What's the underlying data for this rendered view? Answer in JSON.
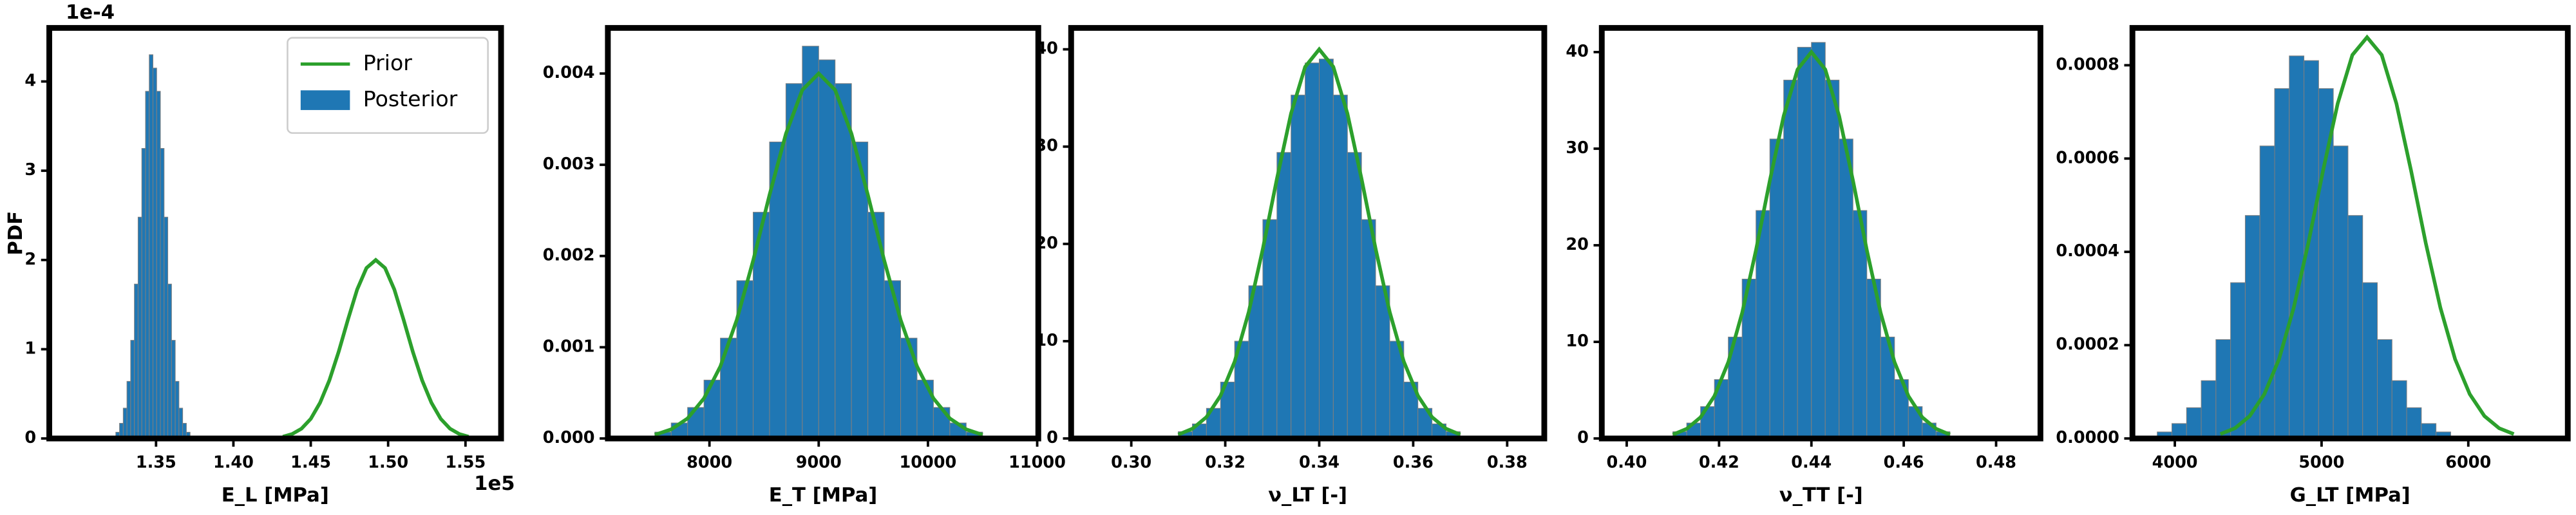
{
  "chart_data": [
    {
      "type": "histogram",
      "xlabel": "E_L [MPa]",
      "ylabel": "PDF",
      "x_offset": "1e5",
      "y_offset": "1e-4",
      "legend": "upper right",
      "xlim": [
        1.281,
        1.573
      ],
      "ylim": [
        0,
        4.6
      ],
      "xticks": [
        1.35,
        {
          "value": 1.4,
          "label": "1.40"
        },
        1.45,
        {
          "value": 1.5,
          "label": "1.50"
        },
        1.55
      ],
      "yticks": [
        0,
        1,
        2,
        3,
        4
      ],
      "series": [
        {
          "name": "Prior",
          "color": "#2ca02c",
          "x": [
            1.432,
            1.438,
            1.444,
            1.45,
            1.456,
            1.462,
            1.468,
            1.474,
            1.48,
            1.486,
            1.492,
            1.498,
            1.504,
            1.51,
            1.516,
            1.522,
            1.528,
            1.534,
            1.54,
            1.546,
            1.552
          ],
          "values": [
            0.02,
            0.05,
            0.11,
            0.22,
            0.4,
            0.65,
            0.97,
            1.33,
            1.67,
            1.91,
            2.0,
            1.91,
            1.67,
            1.33,
            0.97,
            0.65,
            0.4,
            0.22,
            0.11,
            0.05,
            0.02
          ]
        },
        {
          "name": "Posterior",
          "color": "#1f77b4",
          "bins": [
            1.324,
            1.3264,
            1.3288,
            1.3312,
            1.3336,
            1.336,
            1.3384,
            1.3408,
            1.3432,
            1.3456,
            1.348,
            1.3504,
            1.3528,
            1.3552,
            1.3576,
            1.36,
            1.3624,
            1.3648,
            1.3672,
            1.3696,
            1.372
          ],
          "values": [
            0.07,
            0.17,
            0.34,
            0.64,
            1.1,
            1.73,
            2.48,
            3.25,
            3.89,
            4.3,
            4.15,
            3.89,
            3.25,
            2.48,
            1.73,
            1.1,
            0.64,
            0.34,
            0.17,
            0.07
          ]
        }
      ]
    },
    {
      "type": "histogram",
      "xlabel": "E_T [MPa]",
      "xlim": [
        7070,
        11010
      ],
      "ylim": [
        0,
        0.0045
      ],
      "xticks": [
        8000,
        9000,
        10000,
        11000
      ],
      "yticks": [
        {
          "value": 0,
          "label": "0.000"
        },
        0.001,
        0.002,
        0.003,
        0.004
      ],
      "series": [
        {
          "color": "#2ca02c",
          "x": [
            7500,
            7650,
            7800,
            7950,
            8100,
            8250,
            8400,
            8550,
            8700,
            8850,
            9000,
            9150,
            9300,
            9450,
            9600,
            9750,
            9900,
            10050,
            10200,
            10350,
            10500
          ],
          "values": [
            4e-05,
            0.0001,
            0.00022,
            0.00044,
            0.00079,
            0.0013,
            0.00195,
            0.00267,
            0.00334,
            0.00382,
            0.004,
            0.00382,
            0.00334,
            0.00267,
            0.00195,
            0.0013,
            0.00079,
            0.00044,
            0.00022,
            0.0001,
            4e-05
          ]
        },
        {
          "color": "#1f77b4",
          "bins": [
            7500,
            7650,
            7800,
            7950,
            8100,
            8250,
            8400,
            8550,
            8700,
            8850,
            9000,
            9150,
            9300,
            9450,
            9600,
            9750,
            9900,
            10050,
            10200,
            10350,
            10500
          ],
          "values": [
            7e-05,
            0.00017,
            0.00034,
            0.00064,
            0.0011,
            0.00173,
            0.00248,
            0.00325,
            0.00389,
            0.0043,
            0.00415,
            0.00389,
            0.00325,
            0.00248,
            0.00173,
            0.0011,
            0.00064,
            0.00034,
            0.00017,
            7e-05
          ]
        }
      ]
    },
    {
      "type": "histogram",
      "xlabel": "ν_LT [-]",
      "xlim": [
        0.2872,
        0.3879
      ],
      "ylim": [
        0,
        42.2
      ],
      "xticks": [
        {
          "value": 0.3,
          "label": "0.30"
        },
        0.32,
        0.34,
        0.36,
        0.38
      ],
      "yticks": [
        0,
        10,
        20,
        30,
        40
      ],
      "series": [
        {
          "color": "#2ca02c",
          "x": [
            0.31,
            0.313,
            0.316,
            0.319,
            0.322,
            0.325,
            0.328,
            0.331,
            0.334,
            0.337,
            0.34,
            0.343,
            0.346,
            0.349,
            0.352,
            0.355,
            0.358,
            0.361,
            0.364,
            0.367,
            0.37
          ],
          "values": [
            0.4,
            1,
            2.2,
            4.4,
            7.9,
            13,
            19.5,
            26.7,
            33.4,
            38.2,
            40,
            38.2,
            33.4,
            26.7,
            19.5,
            13,
            7.9,
            4.4,
            2.2,
            1,
            0.4
          ]
        },
        {
          "color": "#1f77b4",
          "bins": [
            0.31,
            0.313,
            0.316,
            0.319,
            0.322,
            0.325,
            0.328,
            0.331,
            0.334,
            0.337,
            0.34,
            0.343,
            0.346,
            0.349,
            0.352,
            0.355,
            0.358,
            0.361,
            0.364,
            0.367,
            0.37
          ],
          "values": [
            0.7,
            1.5,
            3.1,
            5.8,
            10,
            15.7,
            22.5,
            29.4,
            35.3,
            38.6,
            39.0,
            35.3,
            29.4,
            22.5,
            15.7,
            10,
            5.8,
            3.1,
            1.5,
            0.7
          ]
        }
      ]
    },
    {
      "type": "histogram",
      "xlabel": "ν_TT [-]",
      "xlim": [
        0.3946,
        0.4896
      ],
      "ylim": [
        0,
        42.5
      ],
      "xticks": [
        {
          "value": 0.4,
          "label": "0.40"
        },
        0.42,
        0.44,
        0.46,
        0.48
      ],
      "yticks": [
        0,
        10,
        20,
        30,
        40
      ],
      "series": [
        {
          "color": "#2ca02c",
          "x": [
            0.41,
            0.413,
            0.416,
            0.419,
            0.422,
            0.425,
            0.428,
            0.431,
            0.434,
            0.437,
            0.44,
            0.443,
            0.446,
            0.449,
            0.452,
            0.455,
            0.458,
            0.461,
            0.464,
            0.467,
            0.47
          ],
          "values": [
            0.4,
            1,
            2.2,
            4.4,
            7.9,
            13,
            19.5,
            26.7,
            33.4,
            38.2,
            40,
            38.2,
            33.4,
            26.7,
            19.5,
            13,
            7.9,
            4.4,
            2.2,
            1,
            0.4
          ]
        },
        {
          "color": "#1f77b4",
          "bins": [
            0.41,
            0.413,
            0.416,
            0.419,
            0.422,
            0.425,
            0.428,
            0.431,
            0.434,
            0.437,
            0.44,
            0.443,
            0.446,
            0.449,
            0.452,
            0.455,
            0.458,
            0.461,
            0.464,
            0.467,
            0.47
          ],
          "values": [
            0.7,
            1.6,
            3.3,
            6.1,
            10.5,
            16.5,
            23.6,
            31,
            37.1,
            40.5,
            41,
            37.1,
            31,
            23.6,
            16.5,
            10.5,
            6.1,
            3.3,
            1.6,
            0.7
          ]
        }
      ]
    },
    {
      "type": "histogram",
      "xlabel": "G_LT [MPa]",
      "xlim": [
        3711,
        6678
      ],
      "ylim": [
        0,
        0.00088
      ],
      "xticks": [
        4000,
        5000,
        6000
      ],
      "yticks": [
        {
          "value": 0,
          "label": "0.0000"
        },
        0.0002,
        0.0004,
        0.0006,
        0.0008
      ],
      "series": [
        {
          "color": "#2ca02c",
          "x": [
            4310,
            4410,
            4510,
            4610,
            4710,
            4810,
            4910,
            5010,
            5110,
            5210,
            5310,
            5410,
            5510,
            5610,
            5710,
            5810,
            5910,
            6010,
            6110,
            6210,
            6310
          ],
          "values": [
            9.5e-06,
            2.2e-05,
            4.8e-05,
            9.5e-05,
            0.00017,
            0.00028,
            0.000419,
            0.000574,
            0.000718,
            0.000822,
            0.00086,
            0.000822,
            0.000718,
            0.000574,
            0.000419,
            0.00028,
            0.00017,
            9.5e-05,
            4.8e-05,
            2.2e-05,
            9.5e-06
          ]
        },
        {
          "color": "#1f77b4",
          "bins": [
            3880,
            3980,
            4080,
            4180,
            4280,
            4380,
            4480,
            4580,
            4680,
            4780,
            4880,
            4980,
            5080,
            5180,
            5280,
            5380,
            5480,
            5580,
            5680,
            5780,
            5880
          ],
          "values": [
            1.4e-05,
            3.2e-05,
            6.6e-05,
            0.000124,
            0.000212,
            0.000334,
            0.000478,
            0.000627,
            0.00075,
            0.00082,
            0.00081,
            0.00075,
            0.000627,
            0.000478,
            0.000334,
            0.000212,
            0.000124,
            6.6e-05,
            3.2e-05,
            1.4e-05
          ]
        }
      ]
    }
  ]
}
